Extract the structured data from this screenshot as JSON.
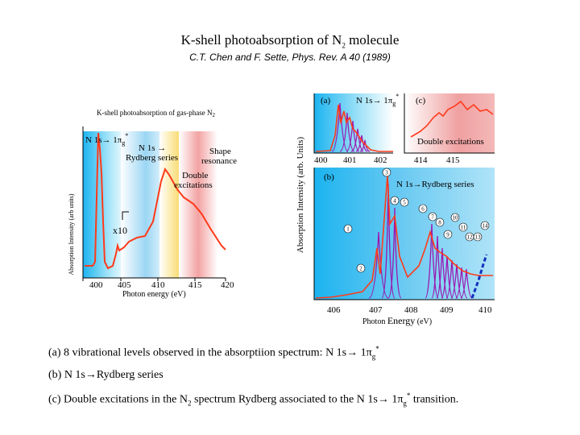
{
  "slide": {
    "title_a": "K-shell photoabsorption of N",
    "title_sub": "2",
    "title_b": " molecule",
    "citation": "C.T. Chen and F. Sette, Phys. Rev. A 40 (1989)"
  },
  "left_figure": {
    "inner_title": "K-shell photoabsorption of gas-phase N",
    "inner_title_sub": "2",
    "ylabel": "Absorption Intensity (arb units)",
    "xlabel": "Photon energy (eV)",
    "x_ticks": [
      "400",
      "405",
      "410",
      "415",
      "420"
    ],
    "label_pi": "N 1s→ 1π",
    "label_pi_sub": "g",
    "label_pi_sup": "*",
    "label_rydberg_1": "N 1s →",
    "label_rydberg_2": "Rydberg series",
    "label_shape_1": "Shape",
    "label_shape_2": "resonance",
    "label_double_1": "Double",
    "label_double_2": "excitations",
    "label_x10": "x10",
    "colors": {
      "bg_blue": "#1cb4f0",
      "bg_pink": "#ee9090",
      "bg_yellow": "#f8d860",
      "trace": "#ff3a1a"
    }
  },
  "right_figure": {
    "ylabel": "Absorption Intensity (arb. Units)",
    "xlabel_a": "Photon ",
    "xlabel_b": "Energy",
    "xlabel_c": " (eV)",
    "panel_a_label": "(a)",
    "panel_a_title": "N 1s→ 1π",
    "panel_a_title_sub": "g",
    "panel_a_title_sup": "*",
    "panel_c_label": "(c)",
    "panel_c_title": "Double excitations",
    "panel_b_label": "(b)",
    "panel_b_title": "N 1s→Rydberg series",
    "ticks_a": [
      "400",
      "401",
      "402"
    ],
    "ticks_c": [
      "414",
      "415"
    ],
    "ticks_b": [
      "406",
      "407",
      "408",
      "409",
      "410"
    ],
    "peak_numbers": [
      "1",
      "2",
      "3",
      "4",
      "5",
      "6",
      "7",
      "8",
      "9",
      "10",
      "11",
      "12",
      "13",
      "14"
    ],
    "colors": {
      "peak": "#9a18b0",
      "trace": "#ff3a1a",
      "dash": "#1530c0"
    }
  },
  "notes": {
    "a_1": "(a) 8 vibrational levels observed in the absorptiion spectrum: N 1s→ 1π",
    "a_sub": "g",
    "a_sup": "*",
    "b": "(b) N 1s→Rydberg series",
    "c_1": "(c) Double excitations in the N",
    "c_sub": "2",
    "c_2": " spectrum Rydberg associated to the N 1s→ 1π",
    "c_sub2": "g",
    "c_sup2": "*",
    "c_3": " transition."
  }
}
